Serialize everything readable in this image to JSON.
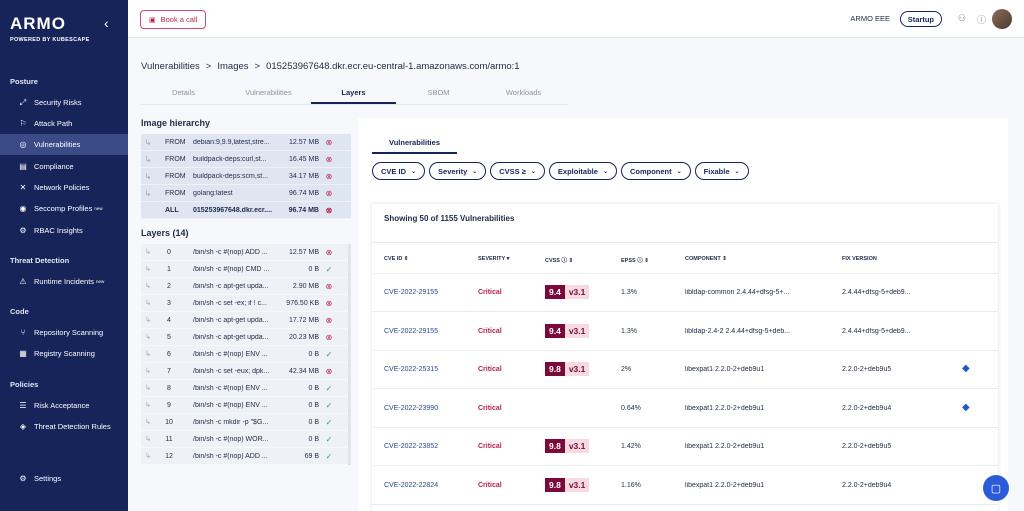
{
  "sidebar": {
    "logo": "ARMO",
    "logo_sub": "POWERED BY KUBESCAPE",
    "sections": {
      "posture": "Posture",
      "threat": "Threat Detection",
      "code": "Code",
      "policies": "Policies"
    },
    "items": [
      {
        "label": "Security Risks",
        "icon": "security-risks-icon"
      },
      {
        "label": "Attack Path",
        "icon": "attack-path-icon"
      },
      {
        "label": "Vulnerabilities",
        "icon": "vulnerabilities-icon"
      },
      {
        "label": "Compliance",
        "icon": "compliance-icon"
      },
      {
        "label": "Network Policies",
        "icon": "network-icon"
      },
      {
        "label": "Seccomp Profiles",
        "icon": "seccomp-icon",
        "badge": "new"
      },
      {
        "label": "RBAC Insights",
        "icon": "rbac-icon"
      },
      {
        "label": "Runtime Incidents",
        "icon": "runtime-icon",
        "badge": "new"
      },
      {
        "label": "Repository Scanning",
        "icon": "repo-icon"
      },
      {
        "label": "Registry Scanning",
        "icon": "registry-icon"
      },
      {
        "label": "Risk Acceptance",
        "icon": "risk-acceptance-icon"
      },
      {
        "label": "Threat Detection Rules",
        "icon": "rules-icon"
      },
      {
        "label": "Settings",
        "icon": "gear-icon"
      }
    ]
  },
  "topbar": {
    "book_call": "Book a call",
    "org": "ARMO EEE",
    "plan": "Startup"
  },
  "breadcrumb": {
    "item1": "Vulnerabilities",
    "item2": "Images",
    "item3": "015253967648.dkr.ecr.eu-central-1.amazonaws.com/armo:1",
    "sep": ">"
  },
  "tabs": [
    "Details",
    "Vulnerabilities",
    "Layers",
    "SBOM",
    "Workloads"
  ],
  "hierarchy": {
    "title": "Image hierarchy",
    "rows": [
      {
        "kw": "FROM",
        "name": "debian:9,9.9,latest,stre...",
        "size": "12.57 MB",
        "status": "bad"
      },
      {
        "kw": "FROM",
        "name": "buildpack-deps:curl,st...",
        "size": "16.45 MB",
        "status": "bad"
      },
      {
        "kw": "FROM",
        "name": "buildpack-deps:scm,st...",
        "size": "34.17 MB",
        "status": "bad"
      },
      {
        "kw": "FROM",
        "name": "golang:latest",
        "size": "96.74 MB",
        "status": "bad"
      },
      {
        "kw": "ALL",
        "name": "015253967648.dkr.ecr....",
        "size": "96.74 MB",
        "status": "bad"
      }
    ]
  },
  "layers": {
    "title": "Layers (14)",
    "rows": [
      {
        "idx": "0",
        "name": "/bin/sh -c #(nop) ADD ...",
        "size": "12.57 MB",
        "status": "bad"
      },
      {
        "idx": "1",
        "name": "/bin/sh -c #(nop) CMD ...",
        "size": "0 B",
        "status": "ok"
      },
      {
        "idx": "2",
        "name": "/bin/sh -c apt-get upda...",
        "size": "2.90 MB",
        "status": "bad"
      },
      {
        "idx": "3",
        "name": "/bin/sh -c set -ex; if ! c...",
        "size": "976.50 KB",
        "status": "bad"
      },
      {
        "idx": "4",
        "name": "/bin/sh -c apt-get upda...",
        "size": "17.72 MB",
        "status": "bad"
      },
      {
        "idx": "5",
        "name": "/bin/sh -c apt-get upda...",
        "size": "20.23 MB",
        "status": "bad"
      },
      {
        "idx": "6",
        "name": "/bin/sh -c #(nop) ENV ...",
        "size": "0 B",
        "status": "ok"
      },
      {
        "idx": "7",
        "name": "/bin/sh -c set -eux; dpk...",
        "size": "42.34 MB",
        "status": "bad"
      },
      {
        "idx": "8",
        "name": "/bin/sh -c #(nop) ENV ...",
        "size": "0 B",
        "status": "ok"
      },
      {
        "idx": "9",
        "name": "/bin/sh -c #(nop) ENV ...",
        "size": "0 B",
        "status": "ok"
      },
      {
        "idx": "10",
        "name": "/bin/sh -c mkdir -p \"$G...",
        "size": "0 B",
        "status": "ok"
      },
      {
        "idx": "11",
        "name": "/bin/sh -c #(nop) WOR...",
        "size": "0 B",
        "status": "ok"
      },
      {
        "idx": "12",
        "name": "/bin/sh -c #(nop) ADD ...",
        "size": "69 B",
        "status": "ok"
      }
    ]
  },
  "vuln": {
    "tab": "Vulnerabilities",
    "filters": [
      "CVE ID",
      "Severity",
      "CVSS ≥",
      "Exploitable",
      "Component",
      "Fixable"
    ],
    "count": "Showing 50 of 1155 Vulnerabilities",
    "headers": {
      "cve": "CVE ID",
      "severity": "SEVERITY",
      "cvss": "CVSS",
      "epss": "EPSS",
      "component": "COMPONENT",
      "fix": "FIX VERSION"
    },
    "rows": [
      {
        "cve": "CVE-2022-29155",
        "severity": "Critical",
        "score": "9.4",
        "version": "v3.1",
        "epss": "1.3%",
        "component": "libldap-common 2.4.44+dfsg-5+...",
        "fix": "2.4.44+dfsg-5+deb9...",
        "extra": false
      },
      {
        "cve": "CVE-2022-29155",
        "severity": "Critical",
        "score": "9.4",
        "version": "v3.1",
        "epss": "1.3%",
        "component": "libldap-2.4-2 2.4.44+dfsg-5+deb...",
        "fix": "2.4.44+dfsg-5+deb9...",
        "extra": false
      },
      {
        "cve": "CVE-2022-25315",
        "severity": "Critical",
        "score": "9.8",
        "version": "v3.1",
        "epss": "2%",
        "component": "libexpat1 2.2.0-2+deb9u1",
        "fix": "2.2.0-2+deb9u5",
        "extra": true
      },
      {
        "cve": "CVE-2022-23990",
        "severity": "Critical",
        "score": "",
        "version": "",
        "epss": "0.64%",
        "component": "libexpat1 2.2.0-2+deb9u1",
        "fix": "2.2.0-2+deb9u4",
        "extra": true
      },
      {
        "cve": "CVE-2022-23852",
        "severity": "Critical",
        "score": "9.8",
        "version": "v3.1",
        "epss": "1.42%",
        "component": "libexpat1 2.2.0-2+deb9u1",
        "fix": "2.2.0-2+deb9u5",
        "extra": false
      },
      {
        "cve": "CVE-2022-22824",
        "severity": "Critical",
        "score": "9.8",
        "version": "v3.1",
        "epss": "1.16%",
        "component": "libexpat1 2.2.0-2+deb9u1",
        "fix": "2.2.0-2+deb9u4",
        "extra": false
      }
    ]
  },
  "colors": {
    "sidebar": "#16245a",
    "critical": "#b3244e",
    "cvss": "#7a0a3a",
    "ok": "#2aa352"
  }
}
